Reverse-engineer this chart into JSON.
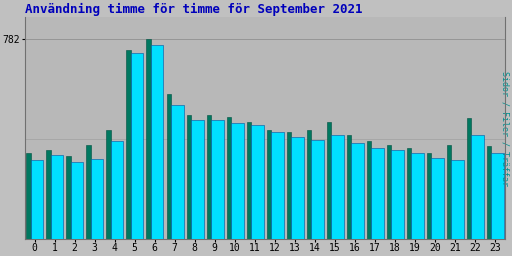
{
  "title": "Användning timme för timme för September 2021",
  "title_color": "#0000bb",
  "background_color": "#c0c0c0",
  "plot_bg_color": "#b8b8b8",
  "ylabel": "Sidor / Filer / Träffar",
  "ylabel_color": "#009090",
  "hours": [
    0,
    1,
    2,
    3,
    4,
    5,
    6,
    7,
    8,
    9,
    10,
    11,
    12,
    13,
    14,
    15,
    16,
    17,
    18,
    19,
    20,
    21,
    22,
    23
  ],
  "cyan_values": [
    310,
    330,
    300,
    315,
    385,
    730,
    760,
    525,
    465,
    465,
    455,
    445,
    418,
    398,
    388,
    408,
    375,
    355,
    348,
    338,
    318,
    308,
    408,
    338
  ],
  "green_values": [
    338,
    350,
    325,
    368,
    428,
    742,
    782,
    568,
    488,
    488,
    478,
    458,
    428,
    418,
    428,
    458,
    408,
    385,
    368,
    358,
    338,
    368,
    475,
    365
  ],
  "cyan_color": "#00e0ff",
  "green_color": "#007860",
  "bar_edge_cyan": "#0050a0",
  "bar_edge_green": "#005040",
  "ylim_min": 0,
  "ylim_max": 870,
  "ytick_value": 782,
  "ytick_label": "782",
  "grid_color": "#909090",
  "font_family": "monospace",
  "title_fontsize": 9,
  "axis_fontsize": 7,
  "figsize": [
    5.12,
    2.56
  ],
  "dpi": 100
}
